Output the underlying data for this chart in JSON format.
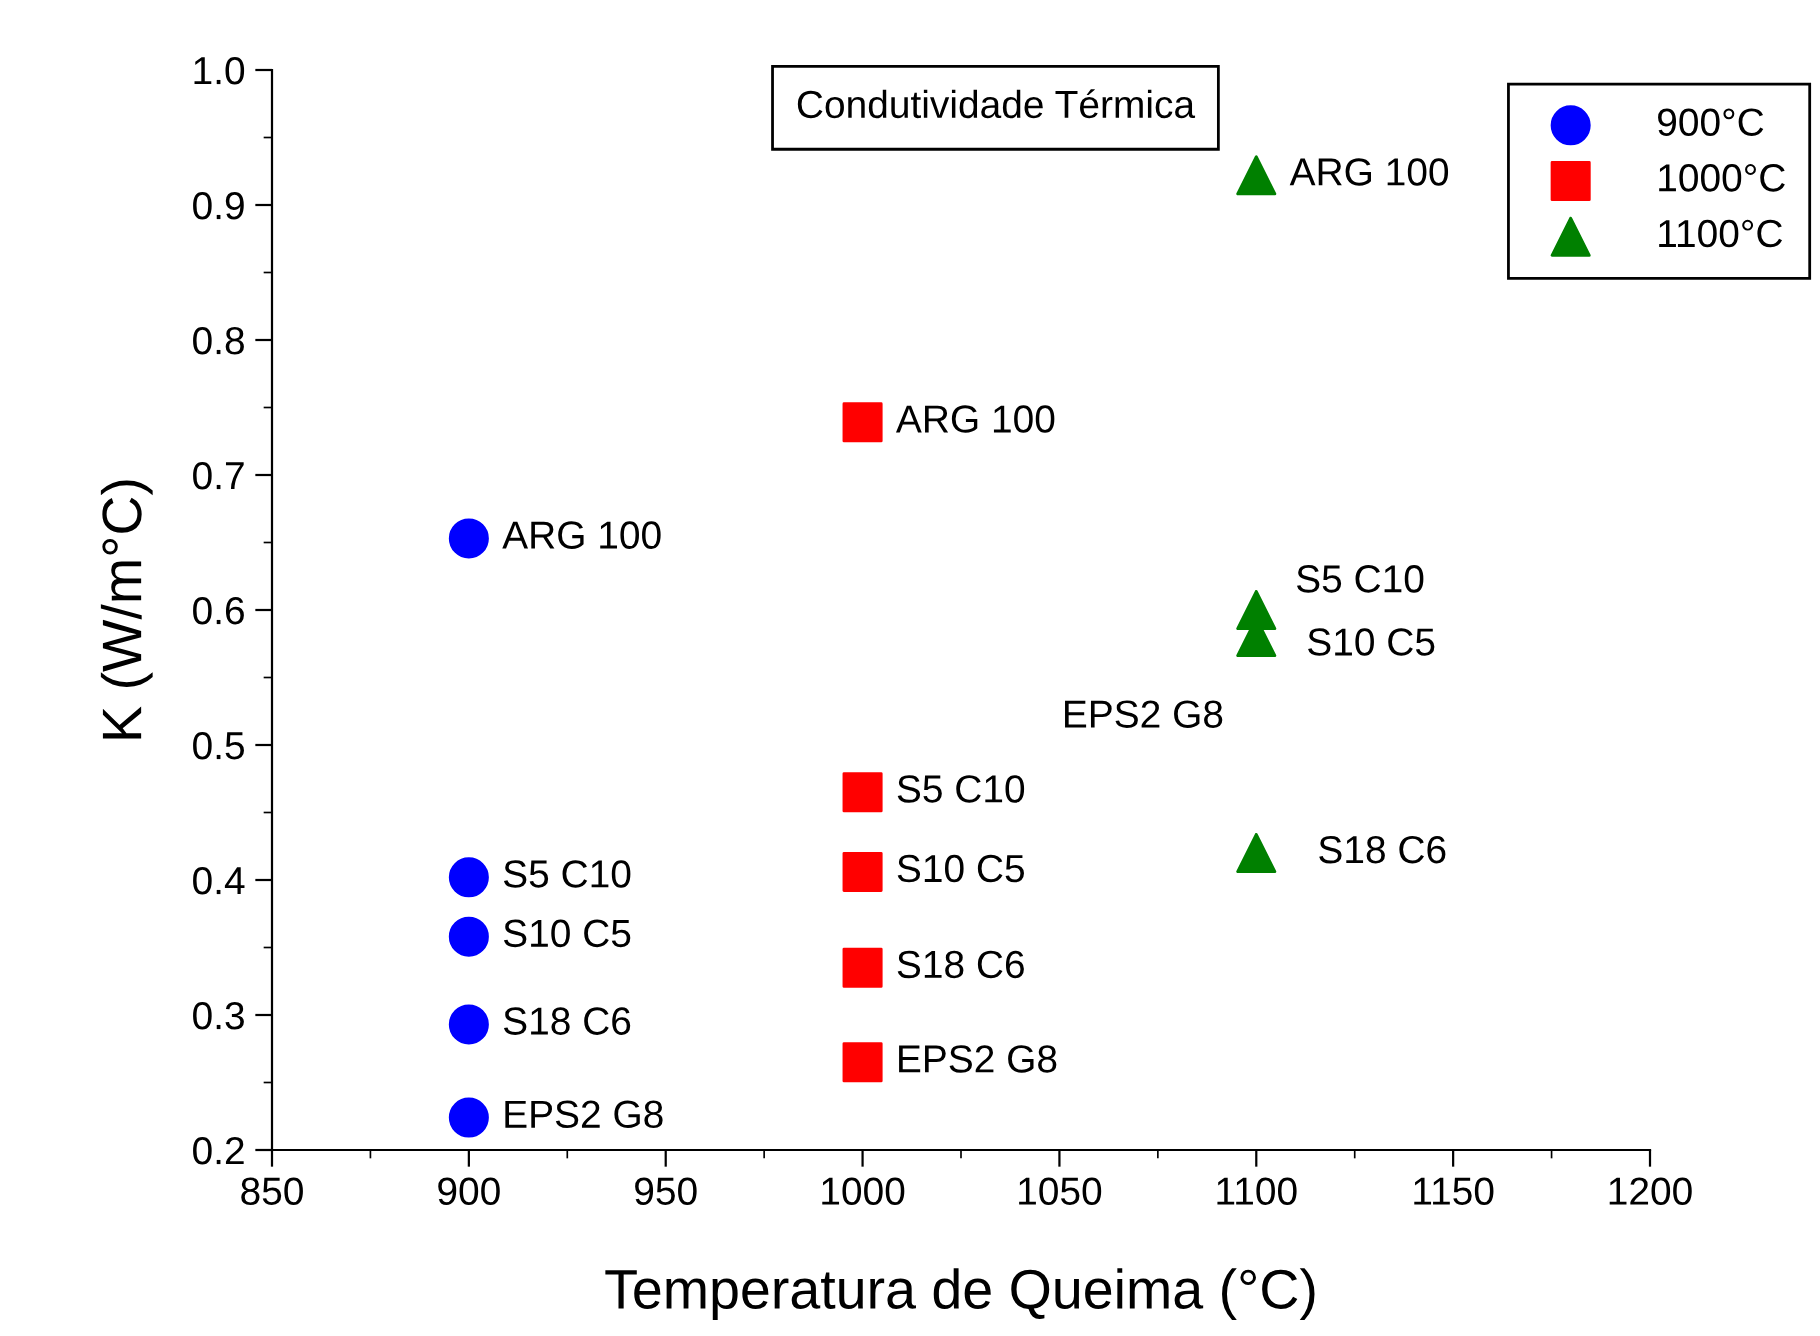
{
  "chart_data": {
    "type": "scatter",
    "title": "Condutividade Térmica",
    "xlabel": "Temperatura de Queima (°C)",
    "ylabel": "K (W/m°C)",
    "xlim": [
      850,
      1200
    ],
    "xticks": [
      850,
      900,
      950,
      1000,
      1050,
      1100,
      1150,
      1200
    ],
    "ylim": [
      0.2,
      1.0
    ],
    "yticks": [
      0.2,
      0.3,
      0.4,
      0.5,
      0.6,
      0.7,
      0.8,
      0.9,
      {
        "value": 1.0,
        "label": "1.0"
      }
    ],
    "grid": false,
    "legend": "top right",
    "series": [
      {
        "name": "900°C",
        "color": "#0000ff",
        "marker": "circle",
        "x": [
          900,
          900,
          900,
          900,
          900
        ],
        "values": [
          0.653,
          0.402,
          0.358,
          0.293,
          0.224
        ]
      },
      {
        "name": "1000°C",
        "color": "#ff0000",
        "marker": "square",
        "x": [
          1000,
          1000,
          1000,
          1000,
          1000
        ],
        "values": [
          0.739,
          0.465,
          0.406,
          0.335,
          0.265
        ]
      },
      {
        "name": "1100°C",
        "color": "#008000",
        "marker": "triangle",
        "x": [
          1100,
          1100,
          1100,
          1100
        ],
        "values": [
          0.922,
          0.6,
          0.58,
          0.42
        ]
      }
    ],
    "annotations": [
      {
        "text": "ARG 100",
        "x": 900,
        "y": 0.653
      },
      {
        "text": "S5 C10",
        "x": 900,
        "y": 0.402
      },
      {
        "text": "S10 C5",
        "x": 900,
        "y": 0.358
      },
      {
        "text": "S18 C6",
        "x": 900,
        "y": 0.293
      },
      {
        "text": "EPS2 G8",
        "x": 900,
        "y": 0.224
      },
      {
        "text": "ARG 100",
        "x": 1000,
        "y": 0.739
      },
      {
        "text": "S5 C10",
        "x": 1000,
        "y": 0.465
      },
      {
        "text": "S10 C5",
        "x": 1000,
        "y": 0.406
      },
      {
        "text": "S18 C6",
        "x": 1000,
        "y": 0.335
      },
      {
        "text": "EPS2 G8",
        "x": 1000,
        "y": 0.265
      },
      {
        "text": "ARG 100",
        "x": 1100,
        "y": 0.922
      },
      {
        "text": "S5 C10",
        "x": 1100,
        "y": 0.6
      },
      {
        "text": "S10 C5",
        "x": 1100,
        "y": 0.58
      },
      {
        "text": "EPS2 G8",
        "x": 1100,
        "y": 0.578
      },
      {
        "text": "S18 C6",
        "x": 1100,
        "y": 0.42
      }
    ]
  }
}
